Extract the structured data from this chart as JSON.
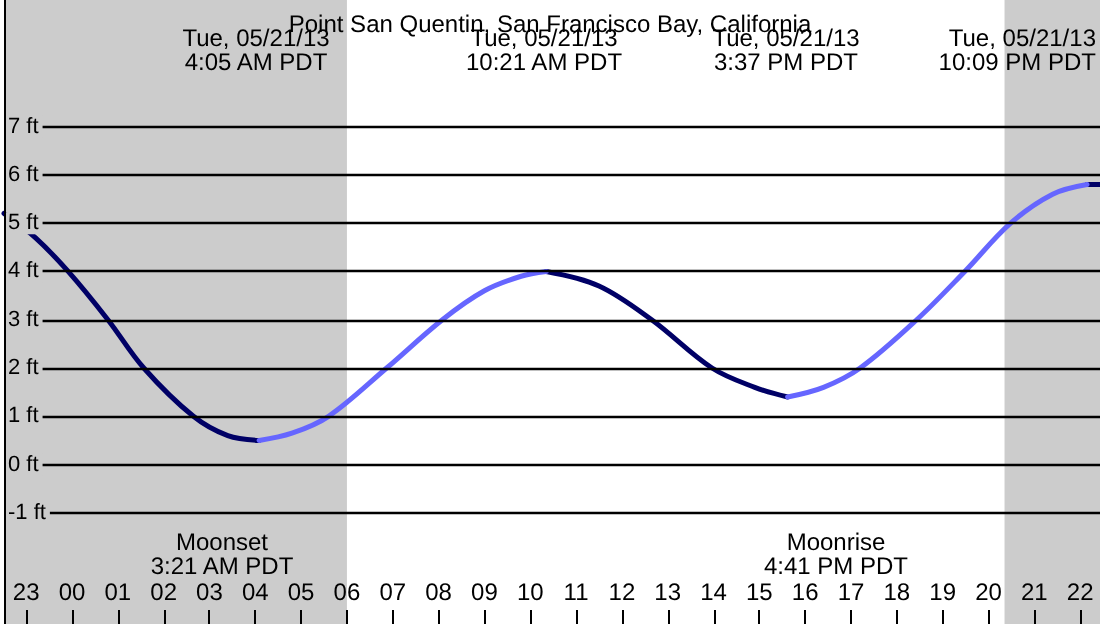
{
  "chart_data": {
    "type": "line",
    "title": "Point San Quentin, San Francisco Bay, California",
    "series": [
      {
        "color": "#000066",
        "x": [
          "--05-20T22:31",
          "--05-20T23:12",
          "--05-20T23:55",
          "--05-21T00:47",
          "--05-21T01:34",
          "--05-21T02:39",
          "--05-21T03:24",
          "--05-21T04:05",
          null,
          "--05-21T10:21",
          "--05-21T11:30",
          "--05-21T12:39",
          "--05-21T13:58",
          "--05-21T14:54",
          "--05-21T15:37",
          null,
          "--05-21T22:09",
          "--05-21T22:26"
        ],
        "values": [
          5.2,
          4.7,
          4.0,
          3.0,
          2.0,
          1.0,
          0.6,
          0.5,
          null,
          4.0,
          3.7,
          3.0,
          2.0,
          1.6,
          1.4,
          null,
          5.8,
          5.8
        ]
      },
      {
        "color": "#6666ff",
        "x": [
          "--05-21T04:05",
          "--05-21T04:48",
          "--05-21T05:36",
          "--05-21T06:52",
          "--05-21T08:05",
          "--05-21T09:00",
          "--05-21T09:48",
          "--05-21T10:21",
          null,
          "--05-21T15:37",
          "--05-21T16:24",
          "--05-21T17:12",
          "--05-21T18:26",
          "--05-21T19:29",
          "--05-21T20:29",
          "--05-21T21:24",
          "--05-21T22:09"
        ],
        "values": [
          0.5,
          0.65,
          1.0,
          2.0,
          3.0,
          3.6,
          3.9,
          4.0,
          null,
          1.4,
          1.6,
          2.0,
          3.0,
          4.0,
          5.0,
          5.6,
          5.8
        ]
      }
    ],
    "xlim": [
      "--05-20T22:31",
      "--05-21T22:26"
    ],
    "xticks": [
      {
        "value": "--05-20T23:00",
        "label": "23"
      },
      {
        "value": "--05-21T00:00",
        "label": "00"
      },
      {
        "value": "--05-21T01:00",
        "label": "01"
      },
      {
        "value": "--05-21T02:00",
        "label": "02"
      },
      {
        "value": "--05-21T03:00",
        "label": "03"
      },
      {
        "value": "--05-21T04:00",
        "label": "04"
      },
      {
        "value": "--05-21T05:00",
        "label": "05"
      },
      {
        "value": "--05-21T06:00",
        "label": "06"
      },
      {
        "value": "--05-21T07:00",
        "label": "07"
      },
      {
        "value": "--05-21T08:00",
        "label": "08"
      },
      {
        "value": "--05-21T09:00",
        "label": "09"
      },
      {
        "value": "--05-21T10:00",
        "label": "10"
      },
      {
        "value": "--05-21T11:00",
        "label": "11"
      },
      {
        "value": "--05-21T12:00",
        "label": "12"
      },
      {
        "value": "--05-21T13:00",
        "label": "13"
      },
      {
        "value": "--05-21T14:00",
        "label": "14"
      },
      {
        "value": "--05-21T15:00",
        "label": "15"
      },
      {
        "value": "--05-21T16:00",
        "label": "16"
      },
      {
        "value": "--05-21T17:00",
        "label": "17"
      },
      {
        "value": "--05-21T18:00",
        "label": "18"
      },
      {
        "value": "--05-21T19:00",
        "label": "19"
      },
      {
        "value": "--05-21T20:00",
        "label": "20"
      },
      {
        "value": "--05-21T21:00",
        "label": "21"
      },
      {
        "value": "--05-21T22:00",
        "label": "22"
      }
    ],
    "ylim": [
      -3.3,
      9.62
    ],
    "yticks": [
      {
        "value": -1,
        "label": "-1 ft"
      },
      {
        "value": 0,
        "label": "0 ft"
      },
      {
        "value": 1,
        "label": "1 ft"
      },
      {
        "value": 2,
        "label": "2 ft"
      },
      {
        "value": 3,
        "label": "3 ft"
      },
      {
        "value": 4,
        "label": "4 ft"
      },
      {
        "value": 5,
        "label": "5 ft"
      },
      {
        "value": 6,
        "label": "6 ft"
      },
      {
        "value": 7,
        "label": "7 ft"
      }
    ],
    "grid": "y",
    "marker": "none",
    "line_style": "solid",
    "bands": [
      {
        "axis": "x",
        "from": "--05-20T22:31",
        "to": "--05-21T06:00",
        "color": "#cccccc"
      },
      {
        "axis": "x",
        "from": "--05-21T20:21",
        "to": "--05-21T22:26",
        "color": "#cccccc"
      }
    ],
    "annotations": [
      "Tue, 05/21/13\n4:05 AM PDT",
      "Tue, 05/21/13\n10:21 AM PDT",
      "Tue, 05/21/13\n3:37 PM PDT",
      "Tue, 05/21/13\n10:09 PM PDT",
      "Moonset\n3:21 AM PDT",
      "Moonrise\n4:41 PM PDT"
    ]
  }
}
